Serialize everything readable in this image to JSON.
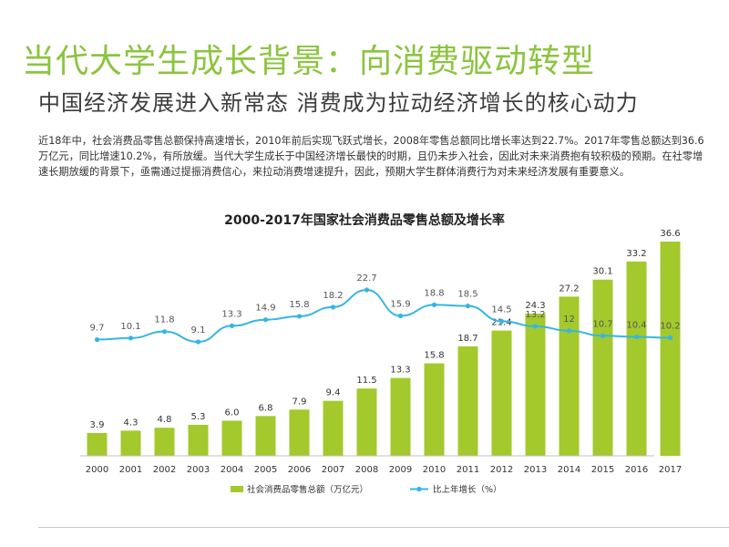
{
  "header": {
    "title": "当代大学生成长背景：向消费驱动转型",
    "subtitle": "中国经济发展进入新常态 消费成为拉动经济增长的核心动力"
  },
  "body": {
    "paragraph": "近18年中，社会消费品零售总额保持高速增长，2010年前后实现飞跃式增长，2008年零售总额同比增长率达到22.7%。2017年零售总额达到36.6万亿元，同比增速10.2%，有所放缓。当代大学生成长于中国经济增长最快的时期，且仍未步入社会，因此对未来消费抱有较积极的预期。在社零增速长期放缓的背景下，亟需通过提振消费信心，来拉动消费增速提升，因此，预期大学生群体消费行为对未来经济发展有重要意义。"
  },
  "colors": {
    "title": "#8cc43f",
    "bar": "#a3c92c",
    "line": "#35b5e5"
  },
  "chart_data": {
    "type": "bar+line",
    "title": "2000-2017年国家社会消费品零售总额及增长率",
    "categories": [
      "2000",
      "2001",
      "2002",
      "2003",
      "2004",
      "2005",
      "2006",
      "2007",
      "2008",
      "2009",
      "2010",
      "2011",
      "2012",
      "2013",
      "2014",
      "2015",
      "2016",
      "2017"
    ],
    "series": [
      {
        "name": "社会消费品零售总额（万亿元）",
        "type": "bar",
        "values": [
          3.9,
          4.3,
          4.8,
          5.3,
          6.0,
          6.8,
          7.9,
          9.4,
          11.5,
          13.3,
          15.8,
          18.7,
          21.4,
          24.3,
          27.2,
          30.1,
          33.2,
          36.6
        ]
      },
      {
        "name": "比上年增长（%）",
        "type": "line",
        "values": [
          9.7,
          10.1,
          11.8,
          9.1,
          13.3,
          14.9,
          15.8,
          18.2,
          22.7,
          15.9,
          18.8,
          18.5,
          14.5,
          13.2,
          12.0,
          10.7,
          10.4,
          10.2
        ]
      }
    ],
    "legend": "bottom-center",
    "grid": false
  }
}
